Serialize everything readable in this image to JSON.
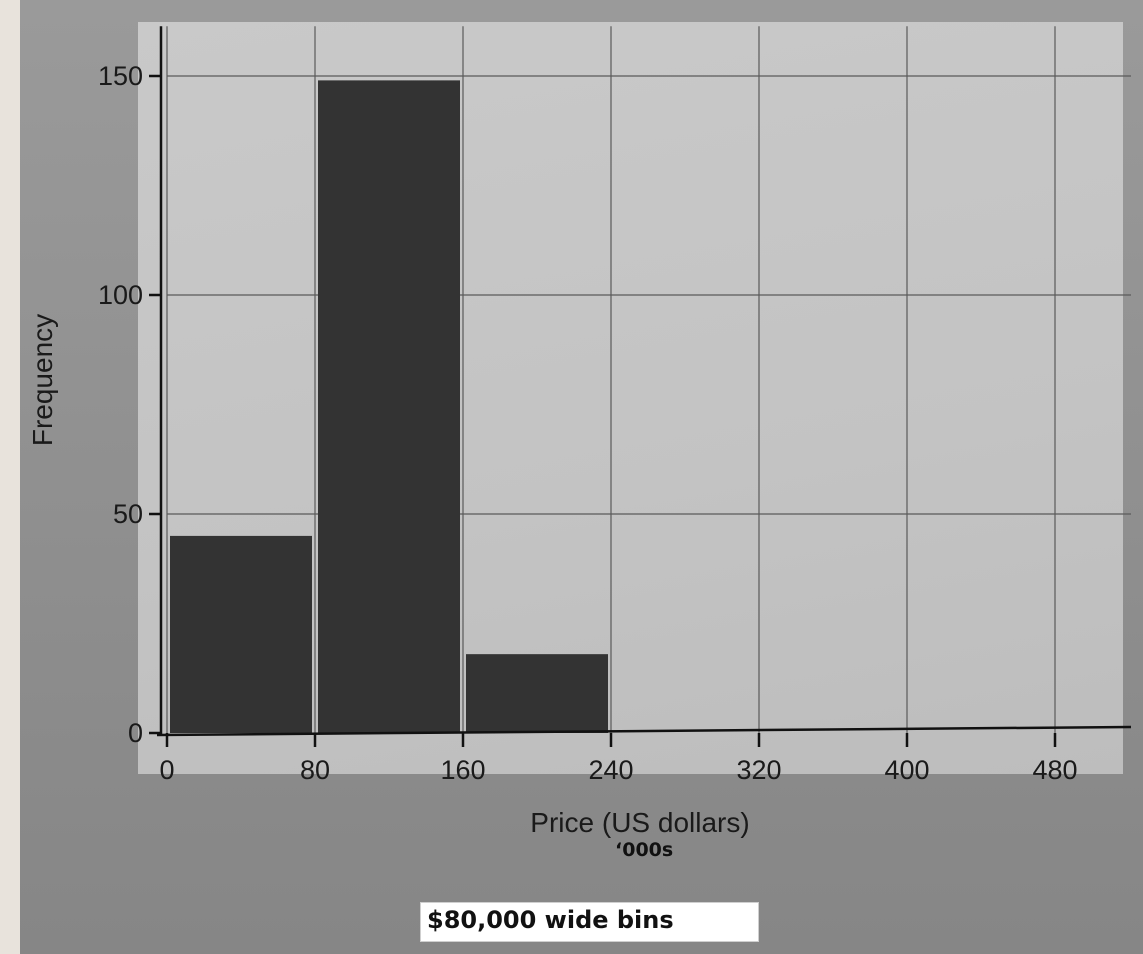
{
  "chart_data": {
    "type": "bar",
    "bins": [
      {
        "start": 0,
        "end": 80,
        "value": 45
      },
      {
        "start": 80,
        "end": 160,
        "value": 149
      },
      {
        "start": 160,
        "end": 240,
        "value": 18
      },
      {
        "start": 240,
        "end": 320,
        "value": 0
      },
      {
        "start": 320,
        "end": 400,
        "value": 0
      },
      {
        "start": 400,
        "end": 480,
        "value": 0
      }
    ],
    "x_ticks": [
      0,
      80,
      160,
      240,
      320,
      400,
      480
    ],
    "y_ticks": [
      0,
      50,
      100,
      150
    ],
    "xlabel": "Price (US dollars)",
    "ylabel": "Frequency",
    "xlim": [
      0,
      520
    ],
    "ylim": [
      0,
      160
    ],
    "grid": true,
    "bar_color": "#333333"
  },
  "annotations": {
    "unit_note": "‘000s",
    "caption": "$80,000 wide bins"
  }
}
